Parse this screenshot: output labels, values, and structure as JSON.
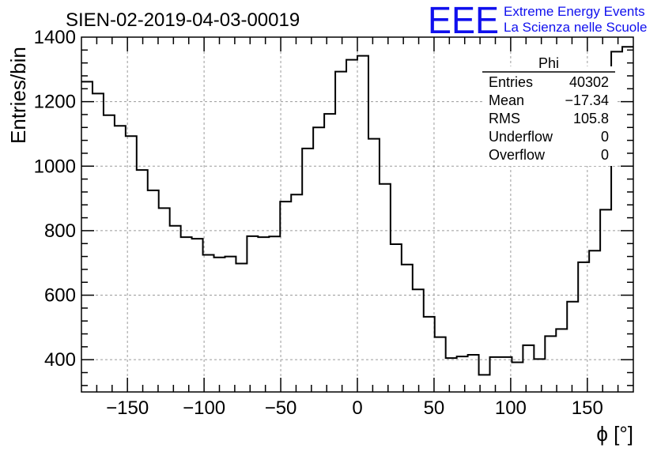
{
  "header": {
    "run_title": "SIEN-02-2019-04-03-00019",
    "logo_text": "EEE",
    "logo_line1": "Extreme Energy Events",
    "logo_line2": "La Scienza nelle Scuole",
    "logo_color": "#1010ee"
  },
  "stats": {
    "title": "Phi",
    "rows": [
      {
        "label": "Entries",
        "value": "40302"
      },
      {
        "label": "Mean",
        "value": "−17.34"
      },
      {
        "label": "RMS",
        "value": "105.8"
      },
      {
        "label": "Underflow",
        "value": "0"
      },
      {
        "label": "Overflow",
        "value": "0"
      }
    ]
  },
  "chart_data": {
    "type": "histogram",
    "xlabel": "ϕ [°]",
    "ylabel": "Entries/bin",
    "xlim": [
      -180,
      180
    ],
    "ylim": [
      300,
      1400
    ],
    "bin_width": 7.2,
    "x_ticks": [
      -150,
      -100,
      -50,
      0,
      50,
      100,
      150
    ],
    "x_tick_labels": [
      "−150",
      "−100",
      "−50",
      "0",
      "50",
      "100",
      "150"
    ],
    "y_ticks": [
      400,
      600,
      800,
      1000,
      1200,
      1400
    ],
    "y_tick_labels": [
      "400",
      "600",
      "800",
      "1000",
      "1200",
      "1400"
    ],
    "grid": true,
    "line_color": "#000000",
    "values": [
      1262,
      1225,
      1158,
      1125,
      1093,
      988,
      925,
      870,
      815,
      780,
      775,
      725,
      717,
      720,
      698,
      783,
      780,
      782,
      890,
      912,
      1055,
      1120,
      1162,
      1293,
      1330,
      1342,
      1085,
      945,
      758,
      695,
      618,
      533,
      470,
      405,
      410,
      415,
      353,
      408,
      408,
      392,
      445,
      402,
      473,
      495,
      580,
      702,
      738,
      865,
      1355,
      1370
    ]
  }
}
